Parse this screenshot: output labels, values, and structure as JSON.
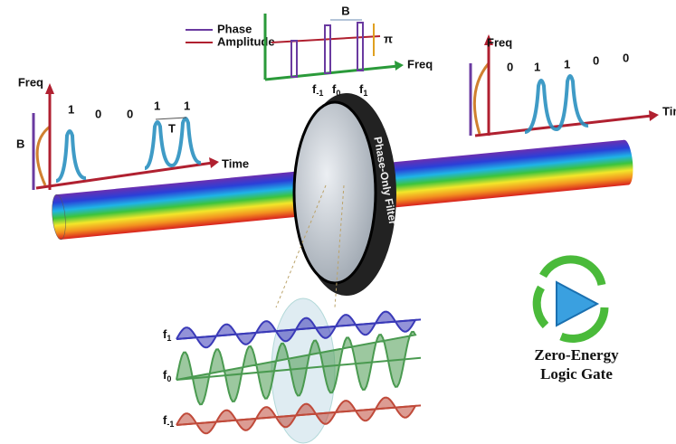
{
  "filter_inset": {
    "legend": [
      "Phase",
      "Amplitude"
    ],
    "bandwidth_label": "B",
    "phase_label": "π",
    "axis_label": "Freq",
    "freq_labels": [
      {
        "main": "f",
        "sub": "-1"
      },
      {
        "main": "f",
        "sub": "0"
      },
      {
        "main": "f",
        "sub": "1"
      }
    ]
  },
  "input_signal": {
    "y_axis_label": "Freq",
    "x_axis_label": "Time",
    "bandwidth_label": "B",
    "period_label": "T",
    "bits": [
      "1",
      "0",
      "0",
      "1",
      "1"
    ]
  },
  "output_signal": {
    "y_axis_label": "Freq",
    "x_axis_label": "Time",
    "bits": [
      "0",
      "1",
      "1",
      "0",
      "0"
    ]
  },
  "filter_label": "Phase-Only Filter",
  "waves": [
    {
      "main": "f",
      "sub": "1"
    },
    {
      "main": "f",
      "sub": "0"
    },
    {
      "main": "f",
      "sub": "-1"
    }
  ],
  "logo": {
    "lines": [
      "Zero-Energy",
      "Logic Gate"
    ]
  }
}
